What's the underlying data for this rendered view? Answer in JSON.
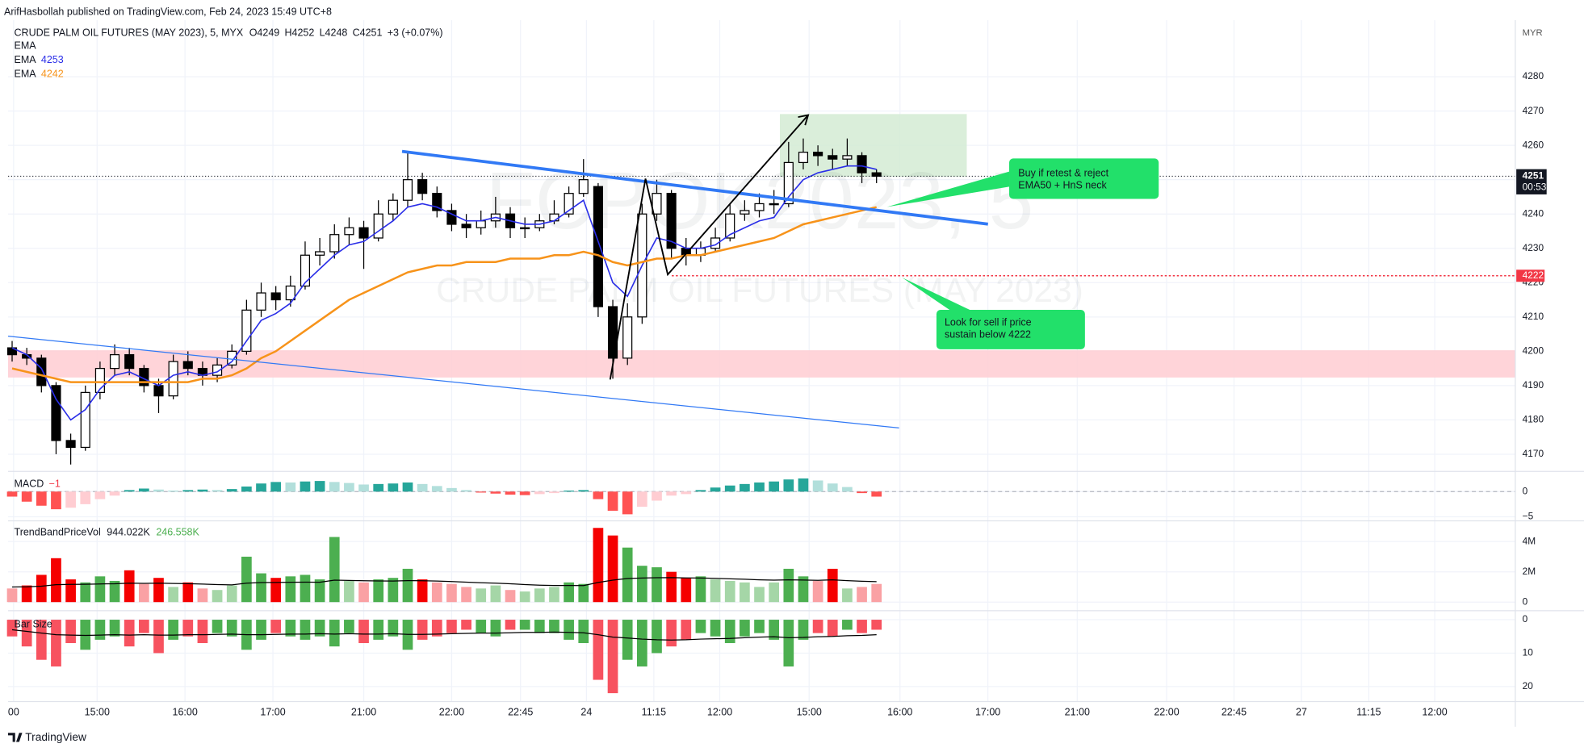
{
  "header": "ArifHasbollah published on TradingView.com, Feb 24, 2023 15:49 UTC+8",
  "footer": "TradingView",
  "chart_data": [
    {
      "type": "candlestick",
      "title": "CRUDE PALM OIL FUTURES (MAY 2023), 5, MYX",
      "ohlc_labels": [
        {
          "value": 4249,
          "label": "O4249"
        },
        {
          "value": 4252,
          "label": "H4252"
        },
        {
          "value": 4248,
          "label": "L4248"
        },
        {
          "value": 4251,
          "label": "C4251"
        }
      ],
      "change": "+3 (+0.07%)",
      "watermark": "FCPOK2023, 5",
      "watermark_subtitle": "CRUDE PALM OIL FUTURES (MAY 2023)",
      "currency": "MYR",
      "annotations": [
        "Buy if retest & reject",
        "EMA50 + HnS neck",
        "Look for sell if price",
        "sustain below 4222"
      ],
      "categories": [
        null,
        null,
        null,
        null,
        null,
        null,
        null,
        null,
        null,
        null,
        null,
        null,
        null,
        null,
        null,
        null,
        null,
        null,
        null,
        null,
        null,
        null,
        null,
        null,
        null,
        null,
        null,
        null,
        null,
        null,
        null,
        null,
        null,
        null,
        null,
        null,
        null,
        null,
        null,
        null,
        null,
        null,
        null,
        null,
        null,
        null,
        null,
        null,
        null,
        null,
        null,
        null,
        null,
        null,
        null,
        null,
        null,
        null,
        null,
        null
      ],
      "open": [
        4201,
        4199,
        4198,
        4190,
        4174,
        4172,
        4188,
        4195,
        4199,
        4195,
        4190,
        4187,
        4197,
        4195,
        4193,
        4196,
        4200,
        4212,
        4217,
        4215,
        4219,
        4228,
        4229,
        4234,
        4236,
        4233,
        4240,
        4244,
        4250,
        4246,
        4241,
        4237,
        4236,
        4238,
        4240,
        4236,
        4236,
        4238,
        4240,
        4246,
        4248,
        4213,
        4198,
        4210,
        4240,
        4246,
        4230,
        4228,
        4230,
        4233,
        4240,
        4241,
        4243,
        4243,
        4255,
        4258,
        4257,
        4256,
        4257,
        4252
      ],
      "high": [
        4203,
        4201,
        4199,
        4191,
        4176,
        4190,
        4197,
        4202,
        4201,
        4196,
        4192,
        4199,
        4200,
        4197,
        4198,
        4202,
        4215,
        4220,
        4219,
        4222,
        4232,
        4233,
        4237,
        4239,
        4238,
        4244,
        4246,
        4258,
        4252,
        4248,
        4243,
        4240,
        4241,
        4245,
        4242,
        4239,
        4240,
        4244,
        4248,
        4256,
        4249,
        4215,
        4214,
        4243,
        4250,
        4247,
        4233,
        4232,
        4236,
        4243,
        4244,
        4246,
        4247,
        4261,
        4262,
        4260,
        4259,
        4262,
        4258,
        4253
      ],
      "low": [
        4197,
        4196,
        4188,
        4170,
        4167,
        4171,
        4186,
        4193,
        4193,
        4188,
        4182,
        4186,
        4193,
        4190,
        4191,
        4195,
        4199,
        4210,
        4212,
        4213,
        4218,
        4225,
        4227,
        4231,
        4224,
        4232,
        4238,
        4242,
        4244,
        4239,
        4235,
        4233,
        4234,
        4236,
        4233,
        4233,
        4235,
        4237,
        4239,
        4245,
        4210,
        4192,
        4196,
        4208,
        4238,
        4227,
        4225,
        4226,
        4229,
        4232,
        4238,
        4239,
        4240,
        4242,
        4253,
        4254,
        4253,
        4254,
        4249,
        4249
      ],
      "close": [
        4199,
        4198,
        4190,
        4174,
        4172,
        4188,
        4195,
        4199,
        4195,
        4190,
        4187,
        4197,
        4195,
        4193,
        4196,
        4200,
        4212,
        4217,
        4215,
        4219,
        4228,
        4229,
        4234,
        4236,
        4233,
        4240,
        4244,
        4250,
        4246,
        4241,
        4237,
        4236,
        4238,
        4240,
        4236,
        4236,
        4238,
        4240,
        4246,
        4250,
        4213,
        4198,
        4210,
        4240,
        4246,
        4230,
        4228,
        4230,
        4233,
        4240,
        4241,
        4243,
        4243,
        4255,
        4258,
        4257,
        4256,
        4257,
        4252,
        4251
      ],
      "colors": {
        "up": "#ffffff",
        "down": "#000000",
        "wick": "#000000"
      },
      "series": [
        {
          "name": "EMA"
        },
        {
          "name": "EMA",
          "color": "#2a2ee8",
          "legend_value": 4253,
          "values": [
            4201,
            4199,
            4195,
            4186,
            4180,
            4183,
            4189,
            4193,
            4194,
            4192,
            4190,
            4193,
            4194,
            4193,
            4194,
            4197,
            4203,
            4209,
            4211,
            4214,
            4220,
            4224,
            4228,
            4231,
            4232,
            4235,
            4238,
            4242,
            4243,
            4242,
            4240,
            4238,
            4238,
            4239,
            4238,
            4237,
            4237,
            4238,
            4241,
            4244,
            4232,
            4220,
            4216,
            4225,
            4233,
            4232,
            4230,
            4230,
            4231,
            4234,
            4236,
            4238,
            4239,
            4245,
            4250,
            4252,
            4253,
            4254,
            4254,
            4253
          ]
        },
        {
          "name": "EMA",
          "color": "#f7931a",
          "legend_value": 4242,
          "values": [
            4195,
            4194,
            4193,
            4192,
            4191,
            4191,
            4191,
            4191,
            4191,
            4191,
            4191,
            4191,
            4191,
            4192,
            4192,
            4193,
            4195,
            4198,
            4200,
            4203,
            4206,
            4209,
            4212,
            4215,
            4217,
            4219,
            4221,
            4223,
            4224,
            4225,
            4225,
            4226,
            4226,
            4226,
            4227,
            4227,
            4227,
            4228,
            4228,
            4229,
            4228,
            4226,
            4225,
            4226,
            4227,
            4227,
            4228,
            4228,
            4229,
            4230,
            4231,
            4232,
            4233,
            4235,
            4237,
            4238,
            4239,
            4240,
            4241,
            4242
          ]
        }
      ],
      "last_price": 4251,
      "countdown": "00:53",
      "alert_level": 4222,
      "alert_color": "#f23645",
      "xlim": [
        0,
        102.6
      ],
      "xticks": [
        {
          "value": 0.1,
          "label": "00"
        },
        {
          "value": 5.8,
          "label": "15:00"
        },
        {
          "value": 11.8,
          "label": "16:00"
        },
        {
          "value": 17.8,
          "label": "17:00"
        },
        {
          "value": 24,
          "label": "21:00"
        },
        {
          "value": 30,
          "label": "22:00"
        },
        {
          "value": 34.7,
          "label": "22:45"
        },
        {
          "value": 39.2,
          "label": "24"
        },
        {
          "value": 43.8,
          "label": "11:15"
        },
        {
          "value": 48.3,
          "label": "12:00"
        },
        {
          "value": 54.4,
          "label": "15:00"
        },
        {
          "value": 60.6,
          "label": "16:00"
        },
        {
          "value": 66.6,
          "label": "17:00"
        },
        {
          "value": 72.7,
          "label": "21:00"
        },
        {
          "value": 78.8,
          "label": "22:00"
        },
        {
          "value": 83.4,
          "label": "22:45"
        },
        {
          "value": 88,
          "label": "27"
        },
        {
          "value": 92.6,
          "label": "11:15"
        },
        {
          "value": 97.1,
          "label": "12:00"
        }
      ],
      "ylim": [
        4165,
        4295
      ],
      "yticks": [
        4170,
        4180,
        4190,
        4200,
        4210,
        4220,
        4230,
        4240,
        4250,
        4260,
        4270,
        4280
      ],
      "grid": true
    },
    {
      "type": "bar",
      "title": "MACD",
      "legend_value": {
        "value": -1,
        "label": "−1"
      },
      "color_rule": "momentum",
      "colors": [
        "#26a69a",
        "#b2dfdb",
        "#ff5252",
        "#ffcdd2"
      ],
      "values": [
        -1.0,
        -2.0,
        -2.8,
        -3.5,
        -3.2,
        -2.5,
        -1.5,
        -0.8,
        0.3,
        0.6,
        0.4,
        0.2,
        0.3,
        0.4,
        0.3,
        0.5,
        1.0,
        1.6,
        1.9,
        1.8,
        2.0,
        2.1,
        1.9,
        1.7,
        1.4,
        1.5,
        1.6,
        1.8,
        1.5,
        1.1,
        0.7,
        0.3,
        -0.2,
        -0.4,
        -0.6,
        -0.7,
        -0.5,
        -0.3,
        0.2,
        0.3,
        -1.5,
        -3.8,
        -4.5,
        -3.0,
        -1.8,
        -0.8,
        -0.5,
        0.3,
        0.8,
        1.2,
        1.5,
        1.8,
        2.0,
        2.4,
        2.6,
        2.2,
        1.6,
        0.9,
        -0.3,
        -1.0
      ],
      "ylim": [
        -5.6,
        3.8
      ],
      "yticks": [
        0,
        {
          "value": -5,
          "label": "−5"
        }
      ],
      "grid": true
    },
    {
      "type": "bar",
      "title": "TrendBandPriceVol",
      "color_rule": "direction",
      "legend_values": [
        {
          "value": 944022,
          "label": "944.022K"
        },
        {
          "value": 246558,
          "label": "246.558K"
        }
      ],
      "colors": [
        "#4caf50",
        "#a5d6a7",
        "#f50000",
        "#faa1a4"
      ],
      "average_color": "#000000",
      "values": [
        900000,
        1100000,
        1800000,
        2900000,
        1500000,
        1300000,
        1700000,
        1400000,
        2100000,
        1200000,
        1600000,
        1000000,
        1300000,
        900000,
        800000,
        1100000,
        3000000,
        1900000,
        1600000,
        1700000,
        1800000,
        1500000,
        4300000,
        1400000,
        1300000,
        1500000,
        1600000,
        2200000,
        1500000,
        1300000,
        1200000,
        1000000,
        900000,
        1100000,
        800000,
        700000,
        900000,
        1000000,
        1300000,
        1200000,
        4900000,
        4400000,
        3600000,
        2400000,
        2300000,
        2000000,
        1600000,
        1700000,
        1500000,
        1400000,
        1300000,
        1000000,
        1300000,
        2200000,
        1700000,
        1400000,
        2200000,
        900000,
        1000000,
        1200000
      ],
      "average": [
        1000000,
        1010000,
        1050000,
        1150000,
        1170000,
        1180000,
        1200000,
        1210000,
        1250000,
        1240000,
        1250000,
        1230000,
        1220000,
        1190000,
        1160000,
        1140000,
        1250000,
        1290000,
        1300000,
        1310000,
        1320000,
        1310000,
        1450000,
        1430000,
        1410000,
        1400000,
        1390000,
        1420000,
        1410000,
        1390000,
        1360000,
        1320000,
        1280000,
        1250000,
        1210000,
        1160000,
        1120000,
        1100000,
        1100000,
        1090000,
        1300000,
        1450000,
        1560000,
        1590000,
        1610000,
        1620000,
        1600000,
        1590000,
        1570000,
        1540000,
        1510000,
        1470000,
        1450000,
        1470000,
        1460000,
        1440000,
        1470000,
        1420000,
        1380000,
        1350000
      ],
      "ylim": [
        -500000,
        5300000
      ],
      "yticks": [
        0,
        {
          "value": 2000000,
          "label": "2M"
        },
        {
          "value": 4000000,
          "label": "4M"
        }
      ],
      "grid": true
    },
    {
      "type": "bar",
      "title": "Bar Size",
      "color_rule": "direction",
      "inverted": true,
      "colors": [
        "#4caf50",
        "#4caf50",
        "#f7525f",
        "#f7525f"
      ],
      "average_color": "#000000",
      "values": [
        5,
        8,
        12,
        14,
        7,
        9,
        6,
        5,
        8,
        4,
        10,
        6,
        5,
        7,
        4,
        5,
        9,
        6,
        4,
        5,
        6,
        5,
        8,
        4,
        7,
        6,
        5,
        9,
        6,
        5,
        4,
        3,
        4,
        5,
        3,
        3,
        4,
        4,
        6,
        7,
        18,
        22,
        12,
        14,
        10,
        8,
        6,
        4,
        5,
        7,
        5,
        4,
        6,
        14,
        6,
        4,
        5,
        3,
        4,
        3
      ],
      "average": [
        3,
        3.5,
        4,
        4.5,
        4.6,
        4.7,
        4.6,
        4.5,
        4.6,
        4.5,
        4.6,
        4.6,
        4.5,
        4.5,
        4.4,
        4.3,
        4.5,
        4.5,
        4.4,
        4.3,
        4.3,
        4.2,
        4.3,
        4.2,
        4.3,
        4.3,
        4.2,
        4.4,
        4.4,
        4.3,
        4.2,
        4.1,
        4,
        4,
        3.9,
        3.8,
        3.8,
        3.7,
        3.8,
        3.9,
        4.5,
        5.2,
        5.5,
        5.8,
        6,
        6.1,
        6,
        5.8,
        5.7,
        5.6,
        5.4,
        5.2,
        5.1,
        5.4,
        5.3,
        5.1,
        5,
        4.8,
        4.7,
        4.5
      ],
      "ylim": [
        -2.1,
        24.5
      ],
      "yticks": [
        0,
        10,
        20
      ],
      "grid": true
    }
  ]
}
